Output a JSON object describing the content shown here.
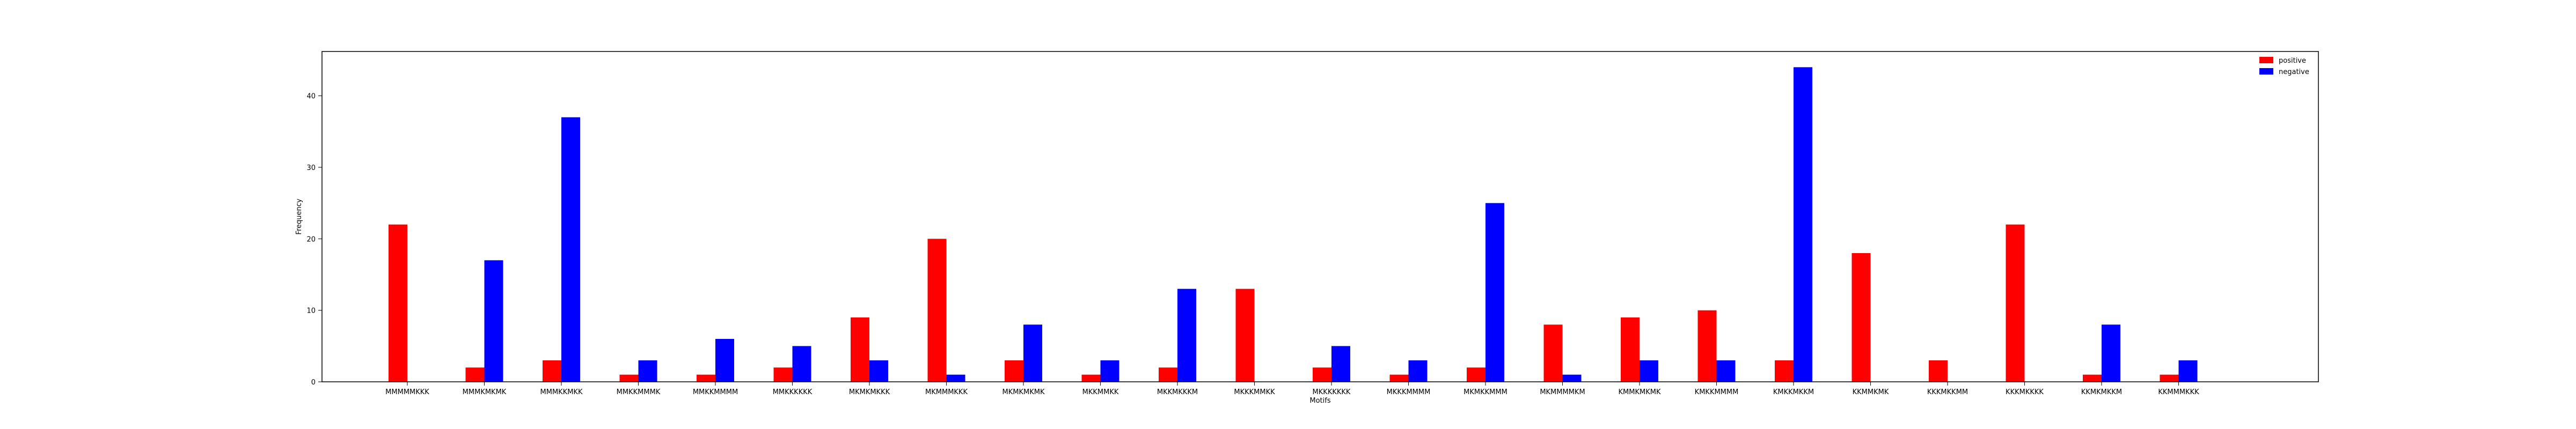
{
  "chart_data": {
    "type": "bar",
    "title": "",
    "xlabel": "Motifs",
    "ylabel": "Frequency",
    "ylim": [
      0,
      46.2
    ],
    "yticks": [
      0,
      10,
      20,
      30,
      40
    ],
    "grid": false,
    "legend_position": "top-right",
    "categories": [
      "MMMMMKKK",
      "MMMKMKMK",
      "MMMKKMKK",
      "MMKKMMMK",
      "MMKKMMMM",
      "MMKKKKKK",
      "MKMKMKKK",
      "MKMMMKKK",
      "MKMKMKMK",
      "MKKMMKK",
      "MKKMKKKM",
      "MKKKMMKK",
      "MKKKKKKK",
      "MKKKMMMM",
      "MKMKKMMM",
      "MKMMMMKM",
      "KMMKMKMK",
      "KMKKMMMM",
      "KMKKMKKM",
      "KKMMKMK",
      "KKKMKKMM",
      "KKKMKKKK",
      "KKMKMKKM",
      "KKMMMKKK"
    ],
    "series": [
      {
        "name": "positive",
        "color": "#ff0000",
        "values": [
          22,
          2,
          3,
          1,
          1,
          2,
          9,
          20,
          3,
          1,
          2,
          13,
          2,
          1,
          2,
          8,
          9,
          10,
          3,
          18,
          3,
          22,
          1,
          1
        ]
      },
      {
        "name": "negative",
        "color": "#0000ff",
        "values": [
          0,
          17,
          37,
          3,
          6,
          5,
          3,
          1,
          8,
          3,
          13,
          0,
          5,
          3,
          25,
          1,
          3,
          3,
          44,
          0,
          0,
          0,
          8,
          3
        ]
      }
    ]
  }
}
